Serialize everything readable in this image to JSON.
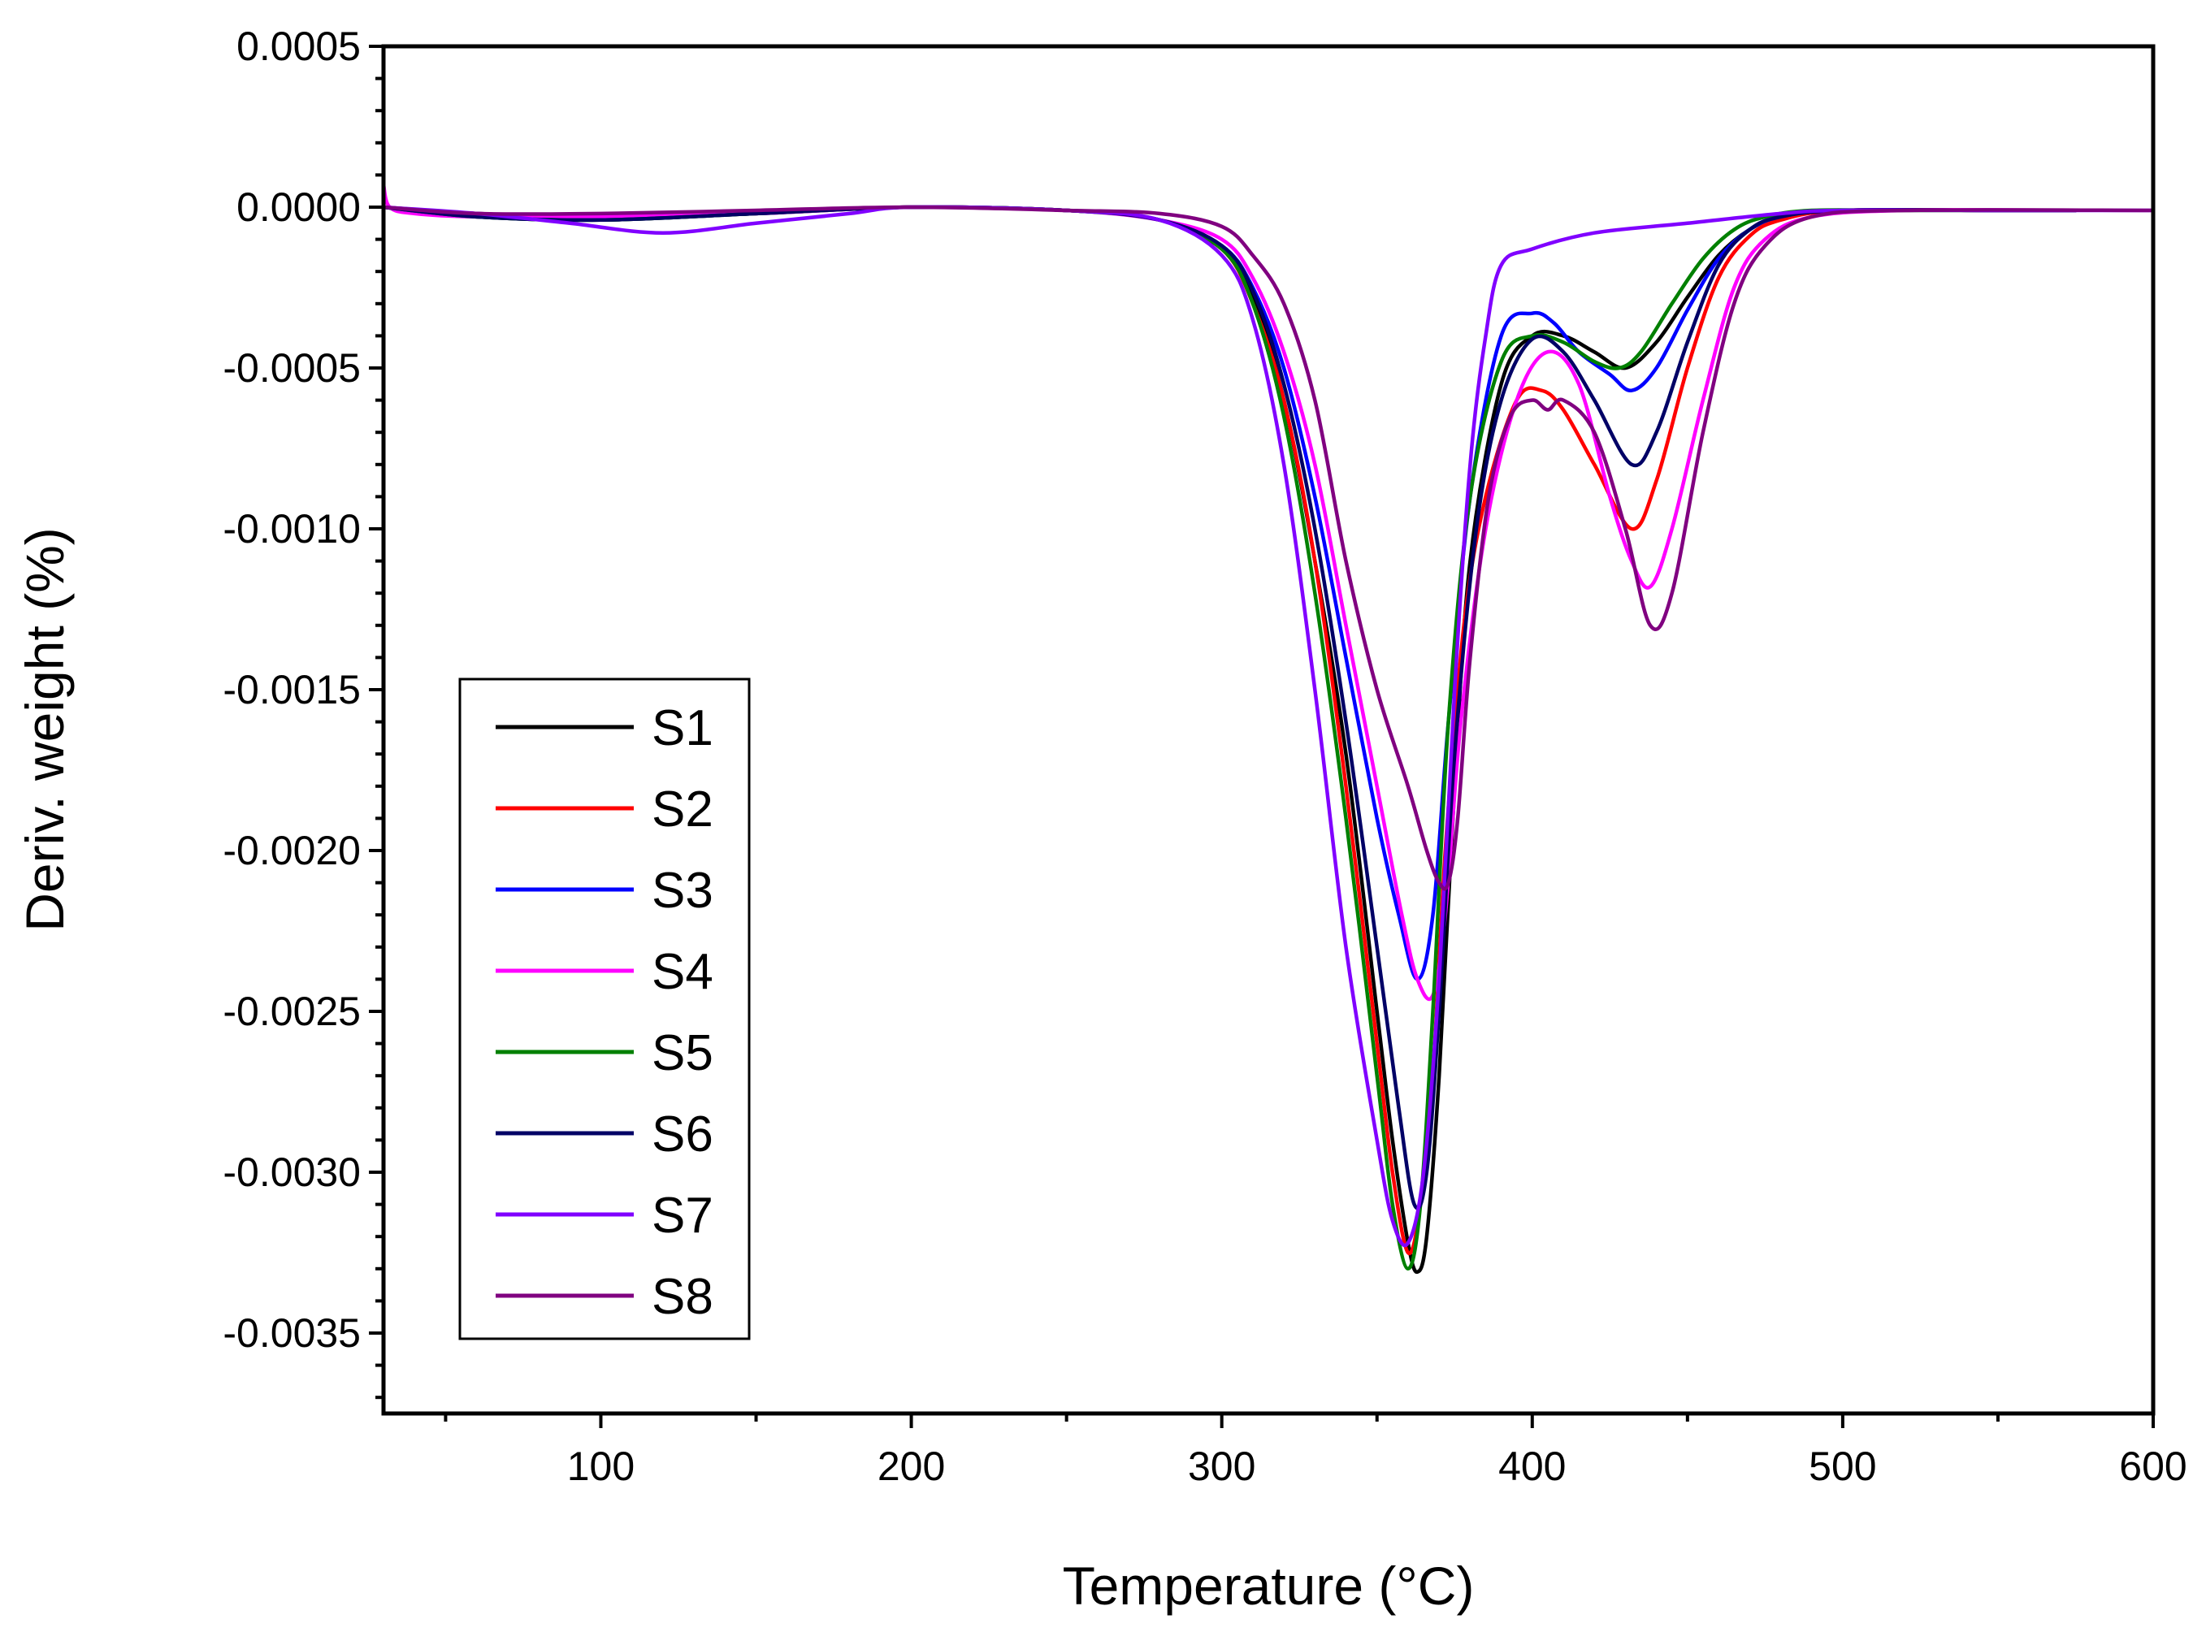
{
  "chart_data": {
    "type": "line",
    "xlabel": "Temperature (°C)",
    "ylabel": "Deriv. weight (%)",
    "xlim": [
      30,
      600
    ],
    "ylim": [
      -0.00375,
      0.0005
    ],
    "x_ticks": [
      100,
      200,
      300,
      400,
      500,
      600
    ],
    "x_tick_labels": [
      "100",
      "200",
      "300",
      "400",
      "500",
      "600"
    ],
    "y_ticks": [
      0.0005,
      0.0,
      -0.0005,
      -0.001,
      -0.0015,
      -0.002,
      -0.0025,
      -0.003,
      -0.0035
    ],
    "y_tick_labels": [
      "0.0005",
      "0.0000",
      "-0.0005",
      "-0.0010",
      "-0.0015",
      "-0.0020",
      "-0.0025",
      "-0.0030",
      "-0.0035"
    ],
    "grid": false,
    "legend_position": "lower-left",
    "series": [
      {
        "name": "S1",
        "color": "#000000",
        "x": [
          30,
          60,
          100,
          150,
          200,
          250,
          280,
          300,
          310,
          320,
          330,
          340,
          350,
          355,
          360,
          363,
          366,
          370,
          375,
          380,
          390,
          400,
          410,
          420,
          430,
          440,
          450,
          460,
          470,
          480,
          500,
          550,
          575
        ],
        "y": [
          0,
          -3e-05,
          -4e-05,
          -2e-05,
          0,
          -1e-05,
          -4e-05,
          -0.00013,
          -0.00028,
          -0.0006,
          -0.0011,
          -0.0017,
          -0.0025,
          -0.0029,
          -0.00322,
          -0.00331,
          -0.0032,
          -0.0027,
          -0.0018,
          -0.0011,
          -0.00055,
          -0.0004,
          -0.0004,
          -0.00045,
          -0.0005,
          -0.00042,
          -0.00028,
          -0.00015,
          -7e-05,
          -3e-05,
          -1e-05,
          -1e-05,
          -1e-05
        ]
      },
      {
        "name": "S2",
        "color": "#ff0000",
        "x": [
          30,
          60,
          100,
          150,
          200,
          250,
          280,
          300,
          310,
          320,
          330,
          340,
          350,
          355,
          360,
          364,
          368,
          372,
          378,
          385,
          395,
          403,
          410,
          420,
          432,
          440,
          450,
          460,
          470,
          480,
          500,
          550,
          575
        ],
        "y": [
          0,
          -2e-05,
          -3e-05,
          -2e-05,
          0,
          -1e-05,
          -4e-05,
          -0.00013,
          -0.0003,
          -0.0006,
          -0.0011,
          -0.0018,
          -0.0026,
          -0.003,
          -0.00325,
          -0.0031,
          -0.0027,
          -0.002,
          -0.0013,
          -0.0009,
          -0.0006,
          -0.00057,
          -0.00063,
          -0.0008,
          -0.001,
          -0.00085,
          -0.0005,
          -0.00022,
          -9e-05,
          -4e-05,
          -1e-05,
          -1e-05,
          -1e-05
        ]
      },
      {
        "name": "S3",
        "color": "#0000ff",
        "x": [
          30,
          60,
          100,
          150,
          200,
          250,
          280,
          300,
          310,
          320,
          330,
          340,
          350,
          357,
          363,
          368,
          373,
          380,
          390,
          400,
          407,
          415,
          425,
          432,
          440,
          450,
          460,
          470,
          480,
          500,
          550,
          575
        ],
        "y": [
          0,
          -2e-05,
          -3e-05,
          -2e-05,
          0,
          -1e-05,
          -4e-05,
          -0.00012,
          -0.00025,
          -0.0005,
          -0.0009,
          -0.0014,
          -0.0019,
          -0.0022,
          -0.0024,
          -0.0022,
          -0.0016,
          -0.0009,
          -0.0004,
          -0.00033,
          -0.00036,
          -0.00045,
          -0.00052,
          -0.00057,
          -0.0005,
          -0.00032,
          -0.00016,
          -7e-05,
          -3e-05,
          -1e-05,
          -1e-05,
          -1e-05
        ]
      },
      {
        "name": "S4",
        "color": "#ff00ff",
        "x": [
          30,
          32,
          40,
          60,
          100,
          150,
          200,
          250,
          280,
          300,
          310,
          320,
          330,
          340,
          350,
          358,
          363,
          368,
          372,
          377,
          385,
          395,
          405,
          415,
          425,
          432,
          438,
          445,
          455,
          465,
          475,
          490,
          520,
          575
        ],
        "y": [
          7e-05,
          0,
          -2e-05,
          -3e-05,
          -3e-05,
          -2e-05,
          0,
          -1e-05,
          -4e-05,
          -0.0001,
          -0.00022,
          -0.00045,
          -0.0008,
          -0.0013,
          -0.0018,
          -0.0022,
          -0.0024,
          -0.00245,
          -0.0022,
          -0.0016,
          -0.001,
          -0.0006,
          -0.00045,
          -0.00055,
          -0.0009,
          -0.0011,
          -0.00118,
          -0.001,
          -0.0006,
          -0.00025,
          -0.0001,
          -3e-05,
          -1e-05,
          -1e-05
        ]
      },
      {
        "name": "S5",
        "color": "#008000",
        "x": [
          30,
          60,
          100,
          150,
          200,
          250,
          280,
          300,
          310,
          320,
          330,
          340,
          350,
          355,
          360,
          364,
          368,
          373,
          380,
          390,
          400,
          410,
          420,
          428,
          435,
          445,
          455,
          465,
          475,
          490,
          520,
          575
        ],
        "y": [
          0,
          -3e-05,
          -4e-05,
          -2e-05,
          0,
          -1e-05,
          -4e-05,
          -0.00013,
          -0.0003,
          -0.00065,
          -0.0012,
          -0.0019,
          -0.0027,
          -0.0031,
          -0.0033,
          -0.0031,
          -0.0025,
          -0.0016,
          -0.0009,
          -0.00048,
          -0.0004,
          -0.00042,
          -0.00048,
          -0.0005,
          -0.00045,
          -0.0003,
          -0.00016,
          -7e-05,
          -3e-05,
          -1e-05,
          -1e-05,
          -1e-05
        ]
      },
      {
        "name": "S6",
        "color": "#000066",
        "x": [
          30,
          60,
          100,
          150,
          200,
          250,
          280,
          300,
          310,
          320,
          330,
          340,
          350,
          357,
          362,
          366,
          370,
          375,
          382,
          390,
          400,
          410,
          420,
          432,
          440,
          450,
          460,
          470,
          480,
          500,
          550,
          575
        ],
        "y": [
          0,
          -3e-05,
          -4e-05,
          -2e-05,
          0,
          -1e-05,
          -4e-05,
          -0.00012,
          -0.00026,
          -0.00055,
          -0.001,
          -0.0016,
          -0.0023,
          -0.0028,
          -0.0031,
          -0.003,
          -0.0025,
          -0.0017,
          -0.001,
          -0.0006,
          -0.00041,
          -0.00045,
          -0.0006,
          -0.0008,
          -0.0007,
          -0.00042,
          -0.00018,
          -7e-05,
          -3e-05,
          -1e-05,
          -1e-05,
          -1e-05
        ]
      },
      {
        "name": "S7",
        "color": "#8000ff",
        "x": [
          30,
          60,
          90,
          120,
          150,
          180,
          200,
          250,
          280,
          300,
          310,
          320,
          330,
          340,
          350,
          355,
          360,
          365,
          370,
          375,
          380,
          385,
          390,
          400,
          420,
          450,
          480,
          500,
          550,
          600
        ],
        "y": [
          0,
          -2e-05,
          -5e-05,
          -8e-05,
          -5e-05,
          -2e-05,
          0,
          -1e-05,
          -4e-05,
          -0.00015,
          -0.00035,
          -0.0008,
          -0.0015,
          -0.0023,
          -0.0029,
          -0.00315,
          -0.00322,
          -0.003,
          -0.0024,
          -0.0015,
          -0.0008,
          -0.0004,
          -0.00018,
          -0.00013,
          -8e-05,
          -5e-05,
          -2e-05,
          -1e-05,
          -1e-05,
          -1e-05
        ]
      },
      {
        "name": "S8",
        "color": "#800080",
        "x": [
          30,
          60,
          100,
          150,
          200,
          250,
          280,
          300,
          310,
          320,
          330,
          340,
          350,
          360,
          366,
          370,
          373,
          376,
          380,
          386,
          393,
          400,
          405,
          410,
          420,
          430,
          438,
          445,
          455,
          465,
          475,
          490,
          520,
          600
        ],
        "y": [
          0,
          -2e-05,
          -2e-05,
          -1e-05,
          0,
          -1e-05,
          -2e-05,
          -6e-05,
          -0.00015,
          -0.0003,
          -0.0006,
          -0.0011,
          -0.0015,
          -0.0018,
          -0.002,
          -0.0021,
          -0.0021,
          -0.0019,
          -0.0014,
          -0.0009,
          -0.00065,
          -0.0006,
          -0.00063,
          -0.0006,
          -0.0007,
          -0.001,
          -0.0013,
          -0.0012,
          -0.0007,
          -0.0003,
          -0.00012,
          -3e-05,
          -1e-05,
          -1e-05
        ]
      }
    ]
  }
}
